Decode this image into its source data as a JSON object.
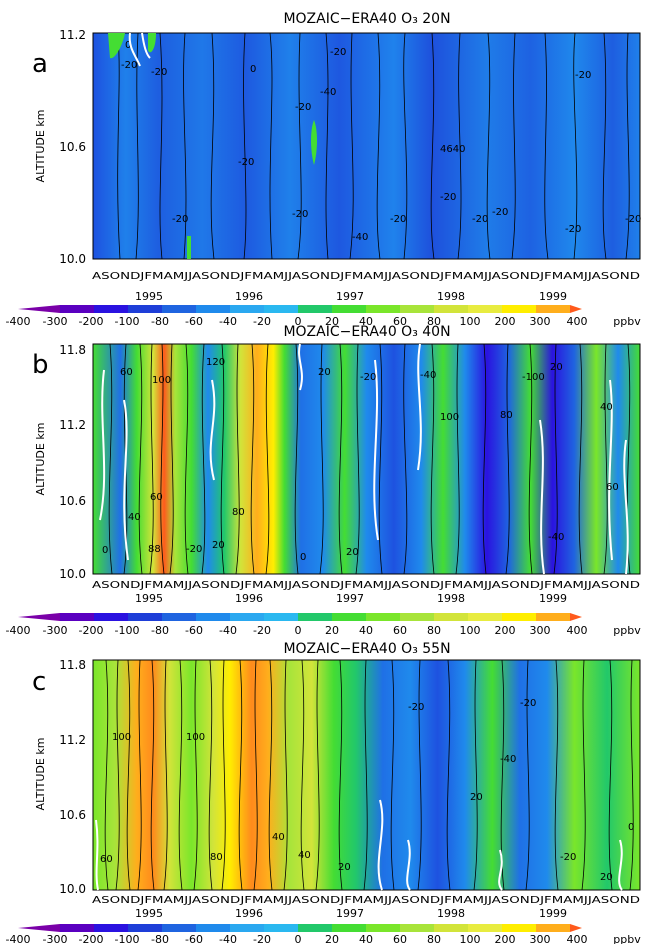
{
  "months_row": "ASONDJFMAMJJASONDJFMAMJJASONDJFMAMJJASONDJFMAMJJASONDJFMAMJJASOND",
  "colorbar": {
    "labels": [
      "-400",
      "-300",
      "-200",
      "-100",
      "-80",
      "-60",
      "-40",
      "-20",
      "0",
      "20",
      "40",
      "60",
      "80",
      "100",
      "200",
      "300",
      "400"
    ],
    "colors": [
      "#7a00a8",
      "#5a00c0",
      "#2a12e0",
      "#1e3ed8",
      "#1f64e0",
      "#1f8aec",
      "#2aa8f0",
      "#22c86a",
      "#44dd33",
      "#7ae62a",
      "#a8e43a",
      "#d2e43a",
      "#ffee00",
      "#ffae1c",
      "#ff5a1c"
    ],
    "unit": "ppbv"
  },
  "chart_data": [
    {
      "type": "heatmap",
      "panel_letter": "a",
      "title": "MOZAIC−ERA40 O₃ 20N",
      "ylabel": "ALTITUDE km",
      "yticks": [
        "10.0",
        "10.6",
        "11.2"
      ],
      "ylim": [
        10.0,
        11.2
      ],
      "year_labels": [
        "1995",
        "1996",
        "1997",
        "1998",
        "1999"
      ],
      "time_range": [
        "1994-08",
        "1999-12"
      ],
      "contour_labels": [
        "0",
        "-20",
        "-20",
        "-20",
        "0",
        "-20",
        "-40",
        "-20",
        "-20",
        "-20",
        "-40",
        "-20",
        "4640",
        "-20",
        "-20",
        "-20",
        "-20",
        "-20",
        "-20"
      ],
      "description_values": {
        "dominant_range": [
          -40,
          0
        ]
      }
    },
    {
      "type": "heatmap",
      "panel_letter": "b",
      "title": "MOZAIC−ERA40 O₃ 40N",
      "ylabel": "ALTITUDE km",
      "yticks": [
        "10.0",
        "10.6",
        "11.2",
        "11.8"
      ],
      "ylim": [
        10.0,
        11.8
      ],
      "year_labels": [
        "1995",
        "1996",
        "1997",
        "1998",
        "1999"
      ],
      "time_range": [
        "1994-08",
        "1999-12"
      ],
      "contour_labels": [
        "60",
        "100",
        "120",
        "20",
        "-20",
        "-40",
        "100",
        "80",
        "-100",
        "20",
        "40",
        "-40",
        "0",
        "40",
        "60",
        "88",
        "-20",
        "20",
        "0",
        "20",
        "80",
        "60"
      ]
    },
    {
      "type": "heatmap",
      "panel_letter": "c",
      "title": "MOZAIC−ERA40 O₃ 55N",
      "ylabel": "ALTITUDE km",
      "yticks": [
        "10.0",
        "10.6",
        "11.2",
        "11.8"
      ],
      "ylim": [
        10.0,
        11.8
      ],
      "year_labels": [
        "1995",
        "1996",
        "1997",
        "1998",
        "1999"
      ],
      "time_range": [
        "1994-08",
        "1999-12"
      ],
      "contour_labels": [
        "100",
        "60",
        "40",
        "20",
        "-20",
        "40",
        "80",
        "100",
        "-20",
        "-40",
        "20",
        "-20",
        "20",
        "0"
      ]
    }
  ]
}
